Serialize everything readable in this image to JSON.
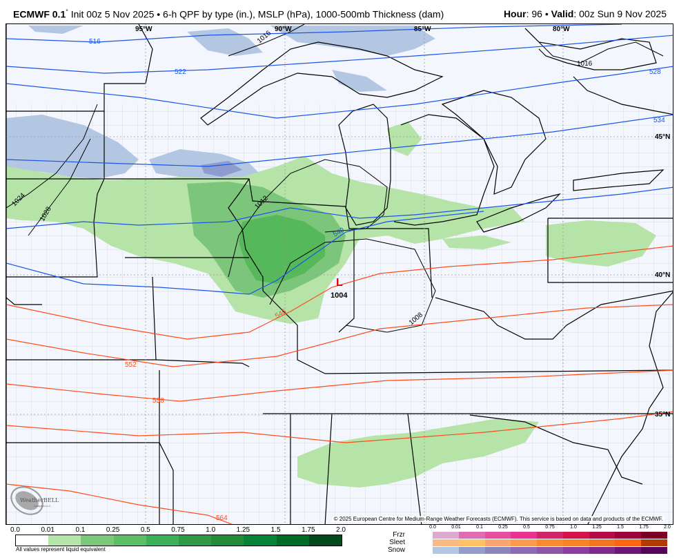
{
  "header": {
    "model": "ECMWF 0.1",
    "degree_mark": "°",
    "description": " Init 00z 5 Nov 2025 • 6-h QPF by type (in.), MSLP (hPa), 1000-500mb Thickness (dam)",
    "hour_label": "Hour",
    "hour_value": ": 96 • ",
    "valid_label": "Valid",
    "valid_value": ": 00z Sun 9 Nov 2025"
  },
  "map": {
    "longitude_labels": [
      "95°W",
      "90°W",
      "85°W",
      "80°W"
    ],
    "latitude_labels": [
      "45°N",
      "40°N",
      "35°N"
    ],
    "low_center": {
      "symbol": "L",
      "pressure": "1004",
      "color": "#e00000"
    },
    "isobar_labels": [
      "1016",
      "1024",
      "1028",
      "1012",
      "1008",
      "1016"
    ],
    "thickness_labels": [
      "516",
      "522",
      "528",
      "534",
      "540",
      "546",
      "552",
      "558",
      "564"
    ],
    "colors": {
      "background": "#f4f6fd",
      "snow_light": "#b3c7e3",
      "snow_medium": "#8f9ccf",
      "rain_light": "#b5e3a8",
      "rain_medium": "#7cc67c",
      "rain_heavy": "#55b85b",
      "thickness_cold": "#1a55e8",
      "thickness_warm": "#ff4a1a",
      "isobar": "#000000",
      "county_lines": "#b8b8c8"
    },
    "logo_text": "WeatherBELL",
    "logo_subtext": "Analytics LLC",
    "copyright": "© 2025 European Centre for Medium-Range Weather Forecasts (ECMWF). This service is based on data and products of the ECMWF."
  },
  "legend": {
    "rain_ticks": [
      "0.0",
      "0.01",
      "0.1",
      "0.25",
      "0.5",
      "0.75",
      "1.0",
      "1.25",
      "1.5",
      "1.75",
      "2.0"
    ],
    "rain_colors": [
      "#ffffff",
      "#b5e5ab",
      "#7ac87a",
      "#5bbf63",
      "#3db15a",
      "#2e9a48",
      "#228b3a",
      "#068339",
      "#006b27",
      "#014a1b"
    ],
    "note": "All values represent liquid equivalent",
    "ptype_ticks": [
      "0.0",
      "0.01",
      "0.1",
      "0.25",
      "0.5",
      "0.75",
      "1.0",
      "1.25",
      "1.5",
      "1.75",
      "2.0"
    ],
    "ptypes": [
      {
        "name": "Frzr",
        "colors": [
          "#dcaace",
          "#df6bb2",
          "#e44f9e",
          "#e9318f",
          "#d02667",
          "#d4134a",
          "#b50c49",
          "#9e0239",
          "#7c0023"
        ]
      },
      {
        "name": "Sleet",
        "colors": [
          "#fbb983",
          "#ffc266",
          "#fba575",
          "#f99c4f",
          "#f98a2e",
          "#f98325",
          "#f27622",
          "#fd6513",
          "#b03c04"
        ]
      },
      {
        "name": "Snow",
        "colors": [
          "#b3c7e5",
          "#949cce",
          "#8b85bb",
          "#8c6ab6",
          "#8e55a8",
          "#8b3ba1",
          "#7f2890",
          "#6e137a",
          "#560459"
        ]
      }
    ]
  }
}
